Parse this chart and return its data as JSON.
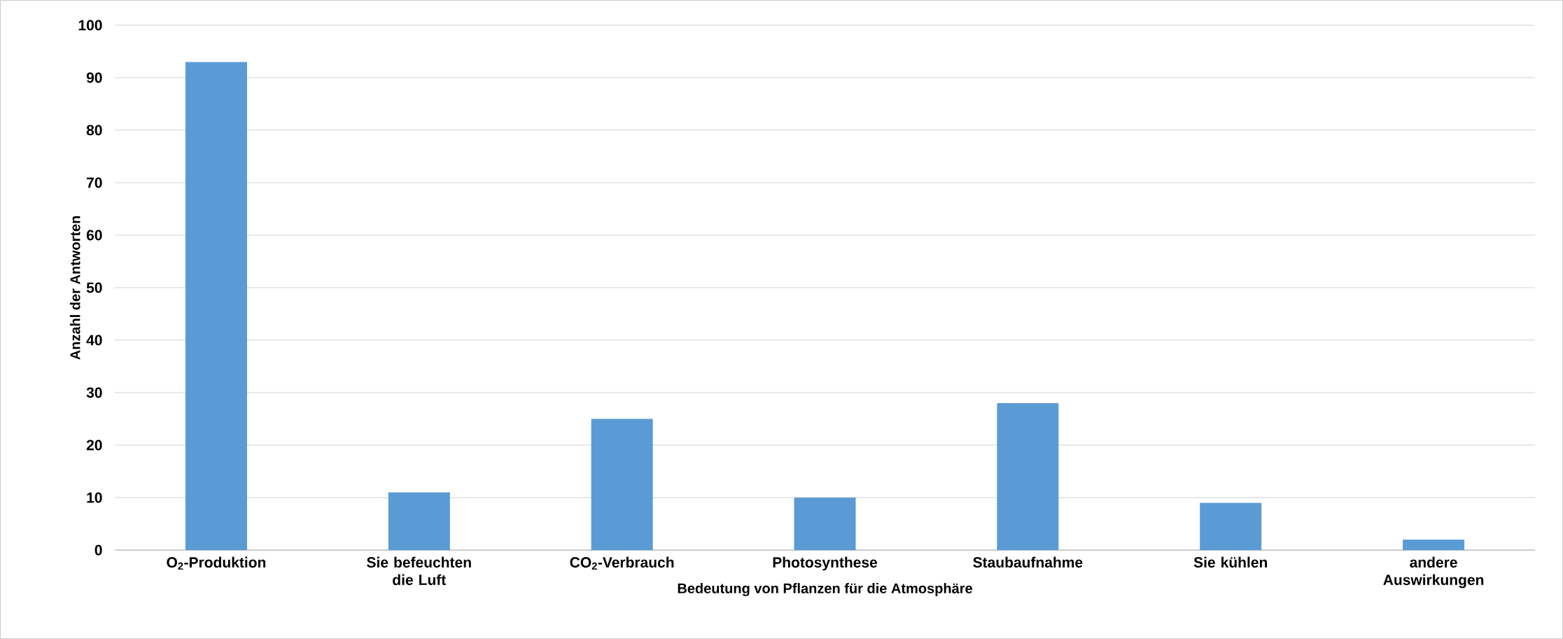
{
  "chart_data": {
    "type": "bar",
    "xlabel": "Bedeutung von Pflanzen für die Atmosphäre",
    "ylabel": "Anzahl der Antworten",
    "categories": [
      "O$_{2}$-Produktion",
      "Sie befeuchten die Luft",
      "CO$_{2}$-Verbrauch",
      "Photosynthese",
      "Staubaufnahme",
      "Sie kühlen",
      "andere Auswirkungen"
    ],
    "values": [
      93,
      11,
      25,
      10,
      28,
      9,
      2
    ],
    "color": "#5b9bd5",
    "ylim": [
      0,
      100
    ],
    "yticks": [
      0,
      10,
      20,
      30,
      40,
      50,
      60,
      70,
      80,
      90,
      100
    ],
    "grid": "y"
  }
}
